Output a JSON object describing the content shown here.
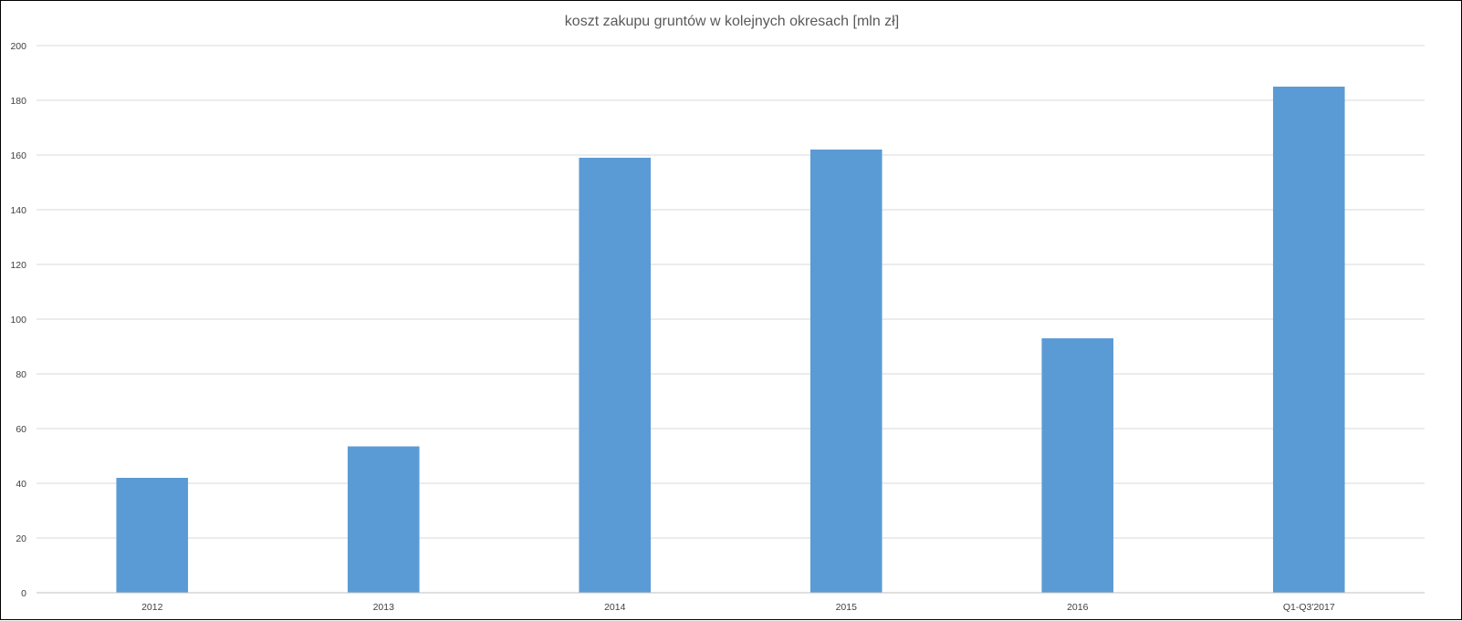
{
  "chart_data": {
    "type": "bar",
    "title": "koszt zakupu gruntów w kolejnych okresach [mln zł]",
    "xlabel": "",
    "ylabel": "",
    "categories": [
      "2012",
      "2013",
      "2014",
      "2015",
      "2016",
      "Q1-Q3'2017"
    ],
    "values": [
      42,
      53.5,
      159,
      162,
      93,
      185
    ],
    "ylim": [
      0,
      200
    ],
    "yticks": [
      "0",
      "20",
      "40",
      "60",
      "80",
      "100",
      "120",
      "140",
      "160",
      "180",
      "200"
    ],
    "grid": true,
    "legend": "none",
    "bar_color": "#5b9bd5"
  }
}
